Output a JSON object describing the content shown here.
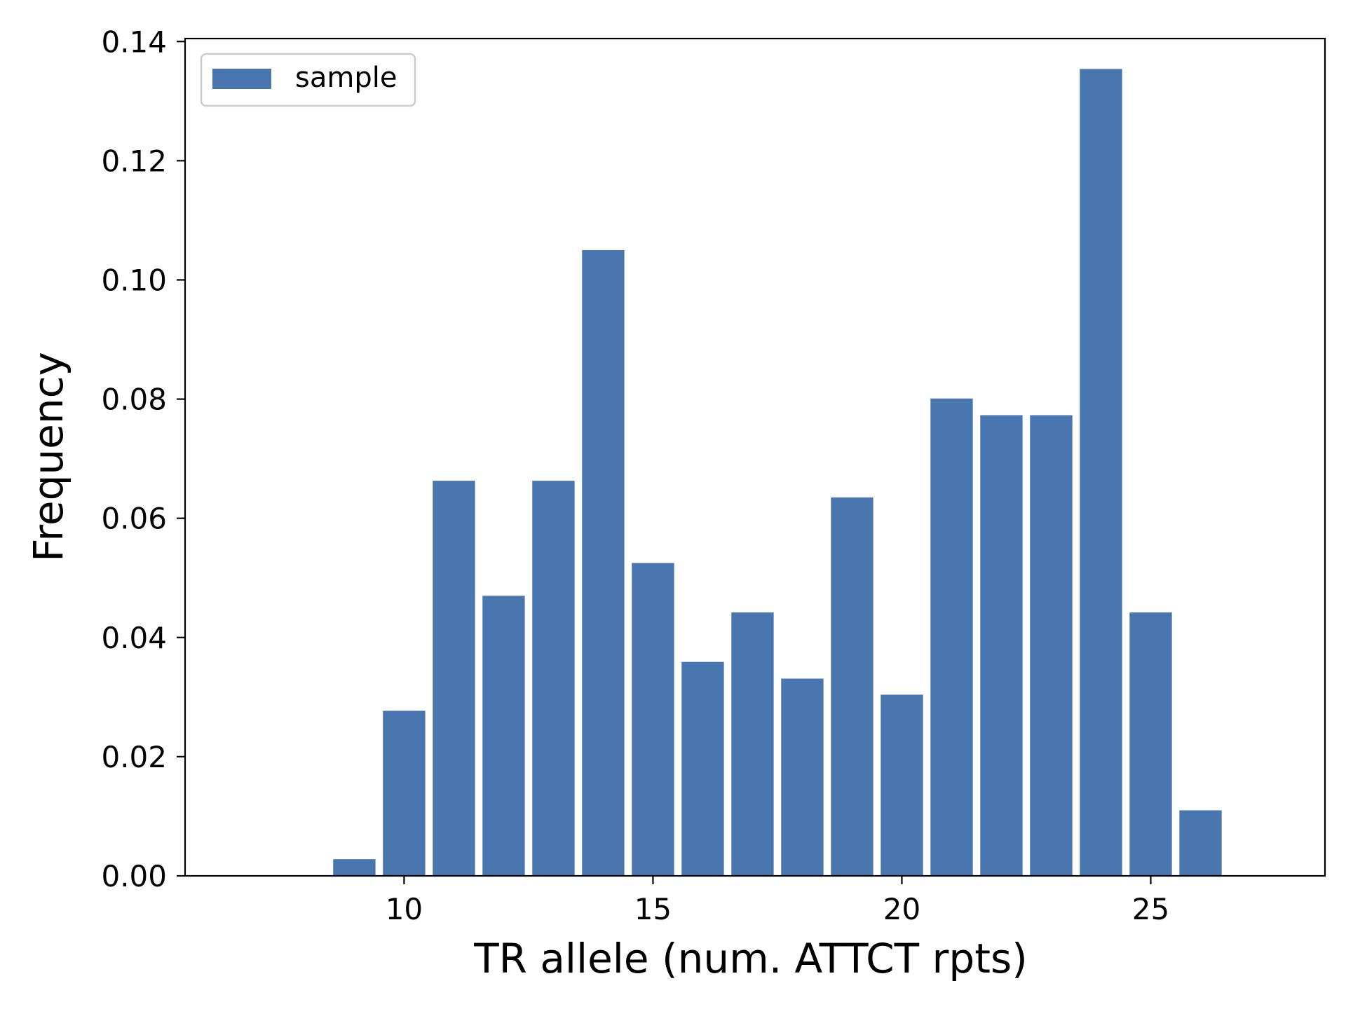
{
  "chart_data": {
    "type": "bar",
    "xlabel": "TR allele (num. ATTCT rpts)",
    "ylabel": "Frequency",
    "legend": {
      "position": "top-left",
      "entries": [
        "sample"
      ]
    },
    "xlim": [
      5.6,
      28.5
    ],
    "ylim": [
      0,
      0.1405
    ],
    "xticks": [
      10,
      15,
      20,
      25
    ],
    "xtick_labels": [
      "10",
      "15",
      "20",
      "25"
    ],
    "yticks": [
      0.0,
      0.02,
      0.04,
      0.06,
      0.08,
      0.1,
      0.12,
      0.14
    ],
    "ytick_labels": [
      "0.00",
      "0.02",
      "0.04",
      "0.06",
      "0.08",
      "0.10",
      "0.12",
      "0.14"
    ],
    "grid": false,
    "bar_width": 0.85,
    "series": [
      {
        "name": "sample",
        "color": "#4a76b0",
        "x": [
          9,
          10,
          11,
          12,
          13,
          14,
          15,
          16,
          17,
          18,
          19,
          20,
          21,
          22,
          23,
          24,
          25,
          26
        ],
        "values": [
          0.0028,
          0.0277,
          0.0663,
          0.047,
          0.0663,
          0.105,
          0.0525,
          0.0359,
          0.0442,
          0.0331,
          0.0635,
          0.0304,
          0.0801,
          0.0773,
          0.0773,
          0.1354,
          0.0442,
          0.011
        ]
      }
    ]
  }
}
